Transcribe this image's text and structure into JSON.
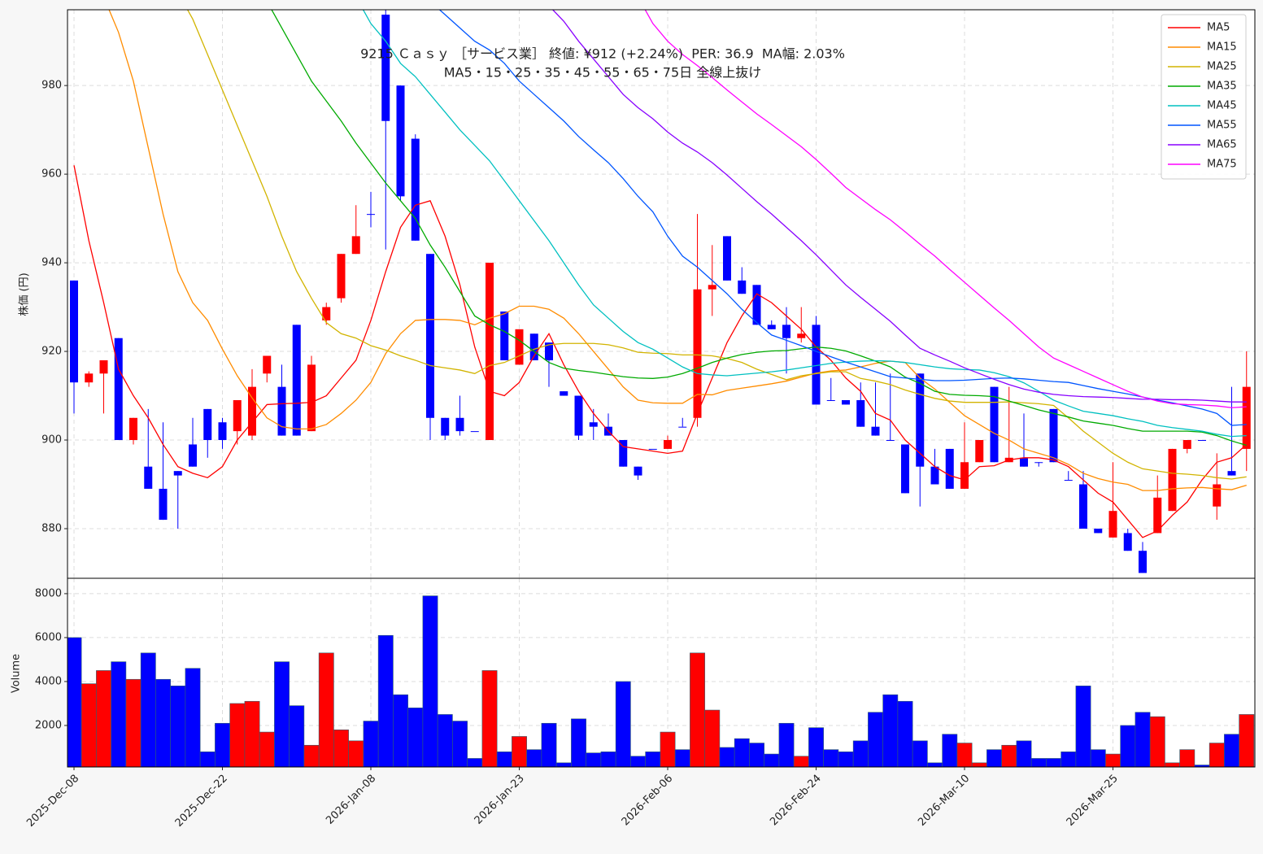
{
  "chart_data": [
    {
      "type": "candlestick",
      "title": "9215 Ｃａｓｙ ［サービス業］ 終値: ¥912 (+2.24%)  PER: 36.9  MA幅: 2.03%",
      "subtitle": "MA5・15・25・35・45・55・65・75日 全線上抜け",
      "ylabel": "株価 (円)",
      "categories": [
        "2025-Dec-08",
        null,
        null,
        null,
        null,
        null,
        null,
        null,
        null,
        null,
        "2025-Dec-22",
        null,
        null,
        null,
        null,
        null,
        null,
        null,
        null,
        null,
        "2026-Jan-08",
        null,
        null,
        null,
        null,
        null,
        null,
        null,
        null,
        null,
        "2026-Jan-23",
        null,
        null,
        null,
        null,
        null,
        null,
        null,
        null,
        null,
        "2026-Feb-06",
        null,
        null,
        null,
        null,
        null,
        null,
        null,
        null,
        null,
        "2026-Feb-24",
        null,
        null,
        null,
        null,
        null,
        null,
        null,
        null,
        null,
        "2026-Mar-10",
        null,
        null,
        null,
        null,
        null,
        null,
        null,
        null,
        null,
        "2026-Mar-25",
        null,
        null,
        null,
        null,
        null,
        null,
        null,
        null,
        null
      ],
      "open": [
        936,
        913,
        915,
        923,
        900,
        894,
        889,
        893,
        899,
        907,
        904,
        902,
        901,
        915,
        912,
        926,
        902,
        927,
        932,
        942,
        951,
        996,
        980,
        968,
        942,
        905,
        905,
        902,
        900,
        929,
        917,
        924,
        922,
        911,
        910,
        904,
        903,
        900,
        894,
        898,
        898,
        903,
        905,
        934,
        946,
        936,
        935,
        926,
        926,
        923,
        926,
        909,
        909,
        909,
        903,
        900,
        899,
        915,
        894,
        898,
        889,
        895,
        912,
        895,
        896,
        895,
        907,
        891,
        890,
        880,
        878,
        879,
        875,
        879,
        884,
        898,
        900,
        885,
        893,
        898
      ],
      "high": [
        936,
        915.5,
        918,
        923,
        905,
        907,
        904,
        893,
        905,
        907,
        905,
        909,
        916,
        919,
        917,
        926,
        919,
        931,
        942,
        953,
        956,
        997,
        980,
        969,
        942,
        905,
        910,
        902,
        940,
        929,
        925,
        924,
        922,
        911,
        910,
        907,
        906,
        900,
        894,
        898,
        901,
        905,
        951,
        944,
        946,
        939,
        935,
        927,
        930,
        930,
        928,
        914,
        909,
        913,
        913,
        915,
        899,
        915,
        898,
        898,
        904,
        900,
        912,
        912,
        906,
        895,
        907,
        893,
        893,
        880,
        895,
        880,
        877,
        892,
        898,
        900,
        900,
        897,
        912,
        920
      ],
      "low": [
        906,
        912,
        906,
        900,
        899,
        889,
        882,
        880,
        894,
        896,
        898,
        899,
        900,
        913,
        901,
        901,
        902,
        926,
        931,
        942,
        948,
        943,
        954,
        945,
        900,
        900,
        901,
        902,
        900,
        918,
        917,
        918,
        912,
        910,
        900,
        900,
        901,
        894,
        891,
        898,
        898,
        903,
        903,
        928,
        936,
        933,
        926,
        925,
        915,
        922,
        908,
        909,
        908,
        903,
        901,
        900,
        888,
        885,
        890,
        889,
        889,
        895,
        895,
        895,
        894,
        894,
        895,
        891,
        880,
        879,
        878,
        875,
        870,
        879,
        884,
        897,
        900,
        882,
        892,
        893
      ],
      "close": [
        913,
        915,
        918,
        900,
        905,
        889,
        882,
        892,
        894,
        900,
        900,
        909,
        912,
        919,
        901,
        901,
        917,
        930,
        942,
        946,
        951,
        972,
        955,
        945,
        905,
        901,
        902,
        902,
        940,
        918,
        925,
        918,
        918,
        910,
        901,
        903,
        901,
        894,
        892,
        898,
        900,
        903,
        934,
        935,
        936,
        933,
        926,
        925,
        923,
        924,
        908,
        909,
        908,
        903,
        901,
        900,
        888,
        894,
        890,
        889,
        895,
        900,
        895,
        896,
        894,
        895,
        895,
        891,
        880,
        879,
        884,
        875,
        870,
        887,
        898,
        900,
        900,
        890,
        892,
        912
      ],
      "up_color": "#ff0000",
      "down_color": "#0000ff",
      "series": [
        {
          "name": "MA5",
          "color": "#ff0000",
          "values": [
            962,
            945,
            931,
            916,
            910,
            905,
            899,
            894,
            892.5,
            891.5,
            894,
            900,
            904,
            908,
            908.2,
            908.3,
            908.5,
            910,
            914,
            918,
            927,
            938,
            948,
            953,
            954,
            946,
            935,
            921,
            911,
            910,
            913,
            919,
            924,
            917,
            911,
            906,
            902,
            898.5,
            898,
            897.5,
            897,
            897.5,
            906,
            914,
            922,
            928,
            933,
            931,
            928,
            925,
            921,
            918,
            914,
            911,
            906,
            904.5,
            900,
            897,
            894,
            892,
            891,
            894,
            894.2,
            895.5,
            896,
            896,
            895.5,
            894,
            891,
            888,
            886,
            882,
            878,
            879.5,
            883,
            886,
            891,
            895,
            896,
            899
          ]
        },
        {
          "name": "MA15",
          "color": "#ff8c00",
          "values": [
            null,
            null,
            1000,
            992,
            981,
            966,
            951,
            938,
            931,
            927,
            920.5,
            914.5,
            909.5,
            905,
            903,
            902.5,
            902.5,
            903.5,
            906,
            909,
            913,
            919.5,
            924,
            927,
            927.2,
            927.2,
            927,
            926,
            927.5,
            928.5,
            930.2,
            930.2,
            929.5,
            927.5,
            924,
            920,
            916,
            912,
            909,
            908.4,
            908.3,
            908.3,
            910.3,
            910.2,
            911.2,
            911.7,
            912.2,
            912.7,
            913.3,
            914.2,
            915.1,
            915.6,
            915.8,
            916.5,
            917.3,
            917.8,
            917.5,
            914,
            911.5,
            908.5,
            905.5,
            903.5,
            901.5,
            900,
            898,
            897,
            896,
            894.5,
            892.5,
            891.3,
            890.5,
            890,
            888.6,
            888.6,
            889,
            889.2,
            889.3,
            889,
            888.8,
            889.8
          ]
        },
        {
          "name": "MA25",
          "color": "#d2b400",
          "values": [
            null,
            null,
            null,
            null,
            null,
            null,
            null,
            1001,
            995,
            987,
            979,
            971,
            963,
            955,
            946,
            938,
            932,
            926.5,
            924,
            923,
            921.3,
            920.3,
            919,
            918,
            916.8,
            916.3,
            915.8,
            915,
            916.8,
            917.5,
            919,
            920.5,
            921.5,
            921.8,
            921.8,
            921.8,
            921.5,
            920.8,
            919.8,
            919.6,
            919.5,
            919.2,
            919.2,
            919,
            918.4,
            917.5,
            916,
            914.8,
            913.6,
            914.5,
            915,
            915.4,
            915.4,
            913.9,
            913.3,
            912.5,
            911.3,
            910.3,
            909.4,
            908.8,
            908.5,
            908.5,
            908.5,
            908.6,
            908.4,
            908.2,
            907.8,
            905,
            902,
            899.5,
            897,
            895,
            893.5,
            893,
            892.5,
            892.3,
            892,
            891.5,
            891.2,
            891.7
          ]
        },
        {
          "name": "MA35",
          "color": "#00aa00",
          "values": [
            null,
            null,
            null,
            null,
            null,
            null,
            null,
            null,
            null,
            null,
            null,
            null,
            null,
            999,
            993,
            987,
            981,
            976.5,
            972,
            967,
            962.5,
            958,
            954,
            950,
            944,
            939,
            933.5,
            928,
            926,
            924.5,
            922.5,
            920,
            917.5,
            916.2,
            915.7,
            915.3,
            914.8,
            914.3,
            914,
            913.9,
            914.2,
            915,
            916.2,
            917.5,
            918.5,
            919.3,
            919.8,
            920.1,
            920.2,
            920.6,
            921,
            920.7,
            920.1,
            919,
            917.8,
            916.5,
            914.2,
            912.8,
            911,
            910.3,
            910.1,
            910,
            909.8,
            908.8,
            907.8,
            906.8,
            906,
            905.2,
            904.3,
            903.8,
            903.3,
            902.6,
            902,
            902,
            902,
            902,
            901.8,
            901,
            899.8,
            898.8
          ]
        },
        {
          "name": "MA45",
          "color": "#00c0c0",
          "values": [
            null,
            null,
            null,
            null,
            null,
            null,
            null,
            null,
            null,
            null,
            null,
            null,
            null,
            null,
            null,
            null,
            null,
            null,
            null,
            1000,
            994,
            990,
            985,
            982,
            978,
            974,
            970,
            966.5,
            963,
            958.5,
            954,
            949.5,
            945,
            940,
            935,
            930.5,
            927.5,
            924.5,
            922,
            920.5,
            918.5,
            916.5,
            915,
            914.7,
            914.5,
            914.8,
            915.1,
            915.4,
            915.8,
            916.3,
            916.8,
            917.3,
            917.6,
            917.8,
            917.9,
            917.8,
            917.5,
            917,
            916.5,
            916.1,
            915.9,
            915.8,
            915.2,
            914.3,
            912.9,
            911,
            909,
            907.7,
            906.5,
            906,
            905.5,
            904.8,
            904.2,
            903.3,
            902.8,
            902.4,
            902,
            901.3,
            900.8,
            901
          ]
        },
        {
          "name": "MA55",
          "color": "#0055ff",
          "values": [
            null,
            null,
            null,
            null,
            null,
            null,
            null,
            null,
            null,
            null,
            null,
            null,
            null,
            null,
            null,
            null,
            null,
            null,
            null,
            null,
            null,
            null,
            null,
            null,
            999,
            996,
            993,
            990,
            988,
            985,
            981,
            978,
            975,
            972,
            968.5,
            965.5,
            962.6,
            959,
            955,
            951.5,
            946,
            941.5,
            939,
            936,
            933,
            929.5,
            926.5,
            923.7,
            922.5,
            921.3,
            920,
            918.8,
            917.6,
            916.5,
            915.4,
            914.3,
            914,
            913.7,
            913.4,
            913.4,
            913.5,
            913.7,
            913.9,
            914,
            913.8,
            913.5,
            913.2,
            913,
            912.3,
            911.6,
            911,
            910.4,
            909.7,
            909,
            908.4,
            907.7,
            907,
            906,
            903.3,
            903.5
          ]
        },
        {
          "name": "MA65",
          "color": "#8800ff",
          "values": [
            null,
            null,
            null,
            null,
            null,
            null,
            null,
            null,
            null,
            null,
            null,
            null,
            null,
            null,
            null,
            null,
            null,
            null,
            null,
            null,
            null,
            null,
            null,
            null,
            null,
            null,
            null,
            null,
            null,
            null,
            null,
            null,
            998,
            994.5,
            990,
            986,
            982,
            978,
            975,
            972.5,
            969.5,
            967,
            965,
            962.6,
            959.8,
            956.8,
            953.8,
            951,
            948,
            945,
            941.8,
            938.4,
            935,
            932.2,
            929.5,
            926.8,
            923.7,
            920.7,
            919.2,
            917.8,
            916.3,
            915,
            913.7,
            912.5,
            911.5,
            910.8,
            910.3,
            910,
            909.8,
            909.7,
            909.6,
            909.4,
            909.2,
            909.2,
            909.1,
            909.1,
            909,
            908.8,
            908.6,
            908.6
          ]
        },
        {
          "name": "MA75",
          "color": "#ff00ff",
          "values": [
            null,
            null,
            null,
            null,
            null,
            null,
            null,
            null,
            null,
            null,
            null,
            null,
            null,
            null,
            null,
            null,
            null,
            null,
            null,
            null,
            null,
            null,
            null,
            null,
            null,
            null,
            null,
            null,
            null,
            null,
            null,
            null,
            null,
            null,
            null,
            null,
            null,
            null,
            1000,
            994,
            990,
            987,
            984.5,
            981.8,
            979,
            976.3,
            973.6,
            971.2,
            968.7,
            966.2,
            963.3,
            960.2,
            957,
            954.5,
            952,
            949.7,
            947,
            944.2,
            941.5,
            938.5,
            935.6,
            932.7,
            929.8,
            927,
            924,
            921,
            918.5,
            917,
            915.5,
            914,
            912.5,
            911,
            909.7,
            908.8,
            908.2,
            908,
            907.9,
            907.7,
            907.3,
            907.5
          ]
        }
      ],
      "ylim": [
        868.8,
        997.1
      ],
      "yticks": [
        880,
        900,
        920,
        940,
        960,
        980
      ],
      "grid": true,
      "legend": "upper right"
    },
    {
      "type": "bar",
      "ylabel": "Volume",
      "values": [
        6000,
        3900,
        4500,
        4900,
        4100,
        5300,
        4100,
        3800,
        4600,
        800,
        2100,
        3000,
        3100,
        1700,
        4900,
        2900,
        1100,
        5300,
        1800,
        1300,
        2200,
        6100,
        3400,
        2800,
        7900,
        2500,
        2200,
        500,
        4500,
        800,
        1500,
        900,
        2100,
        300,
        2300,
        750,
        800,
        4000,
        600,
        800,
        1700,
        900,
        5300,
        2700,
        1000,
        1400,
        1200,
        700,
        2100,
        600,
        1900,
        900,
        800,
        1300,
        2600,
        3400,
        3100,
        1300,
        300,
        1600,
        1200,
        300,
        900,
        1100,
        1300,
        500,
        500,
        800,
        3800,
        900,
        700,
        2000,
        2600,
        2400,
        300,
        900,
        200,
        1200,
        1600,
        2500
      ],
      "ylim": [
        110,
        8700
      ],
      "yticks": [
        2000,
        4000,
        6000,
        8000
      ],
      "grid": true
    }
  ]
}
